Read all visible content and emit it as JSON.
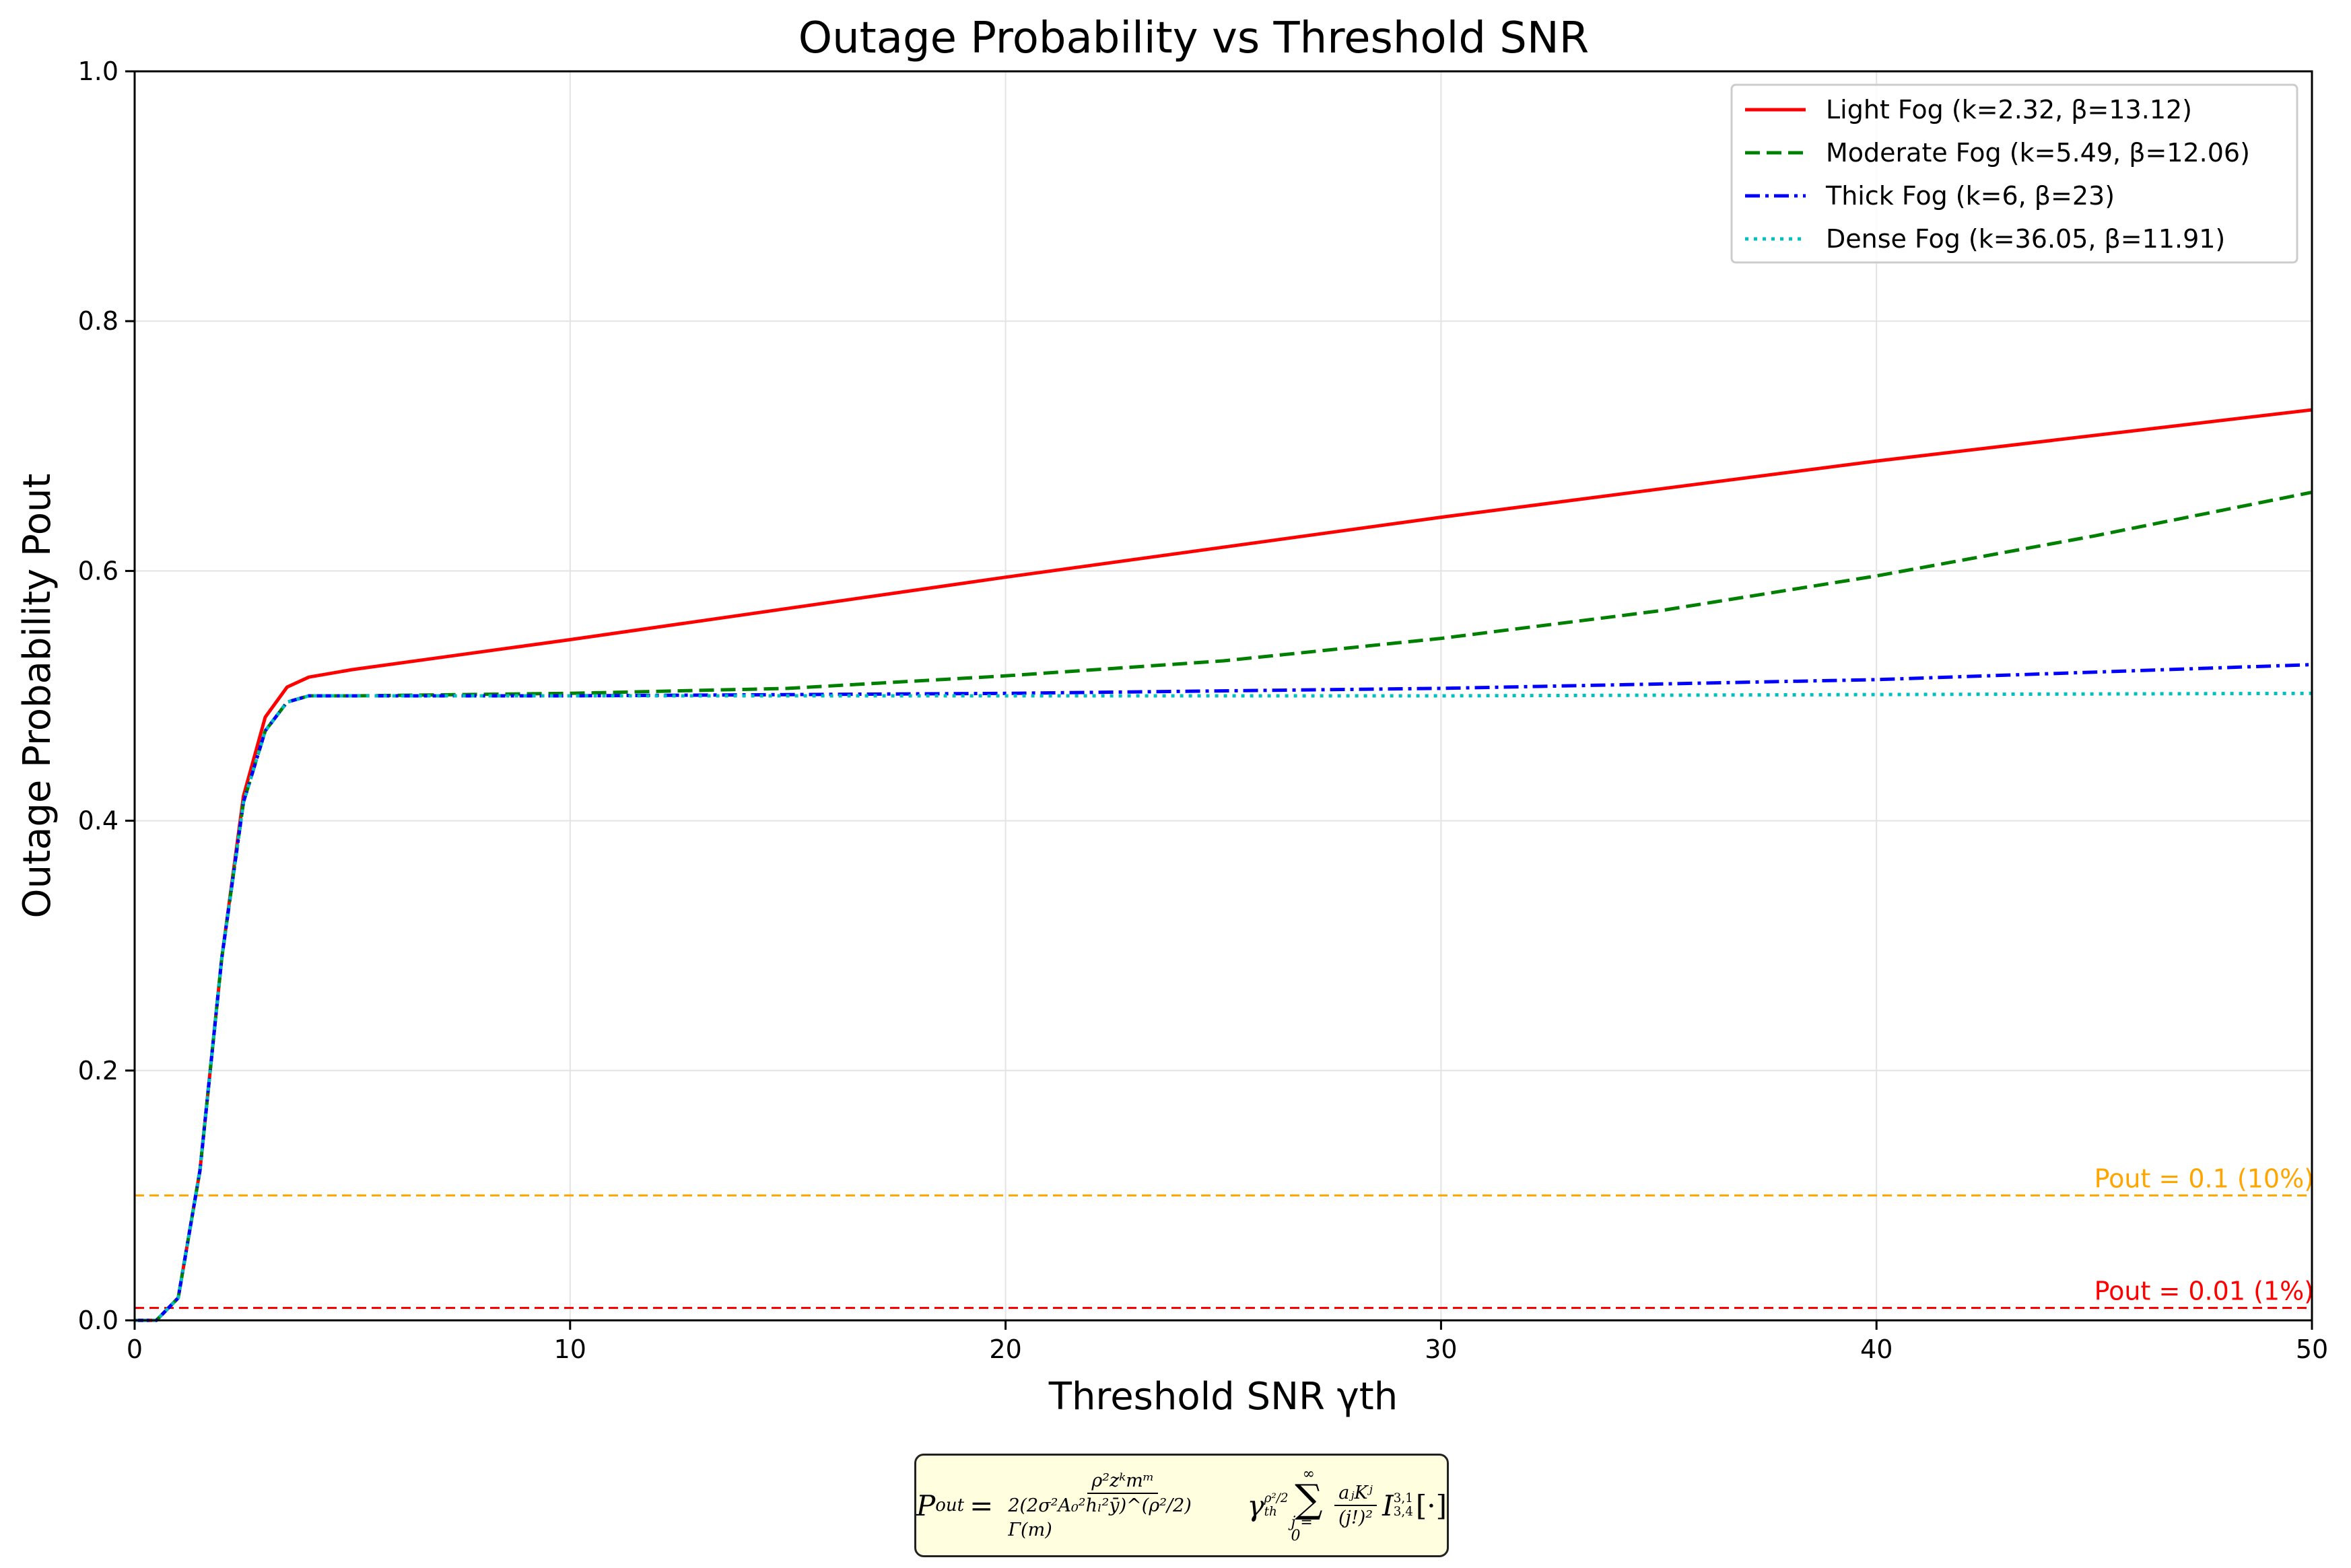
{
  "chart_data": {
    "type": "line",
    "title": "Outage Probability vs Threshold SNR",
    "xlabel": "Threshold SNR γth",
    "ylabel": "Outage Probability Pout",
    "xlim": [
      0,
      50
    ],
    "ylim": [
      0,
      1.0
    ],
    "xticks": [
      "0",
      "10",
      "20",
      "30",
      "40",
      "50"
    ],
    "yticks": [
      "0.0",
      "0.2",
      "0.4",
      "0.6",
      "0.8",
      "1.0"
    ],
    "grid": true,
    "legend_position": "top-right",
    "series": [
      {
        "name": "Light Fog (k=2.32, β=13.12)",
        "color": "#ff0000",
        "style": "solid",
        "x": [
          0,
          0.5,
          1,
          1.5,
          2,
          2.5,
          3,
          3.5,
          4,
          5,
          10,
          20,
          30,
          40,
          50
        ],
        "y": [
          0,
          0,
          0.018,
          0.12,
          0.29,
          0.42,
          0.483,
          0.507,
          0.515,
          0.521,
          0.545,
          0.595,
          0.643,
          0.688,
          0.729
        ]
      },
      {
        "name": "Moderate Fog (k=5.49, β=12.06)",
        "color": "#008000",
        "style": "dashed",
        "x": [
          0,
          0.5,
          1,
          1.5,
          2,
          2.5,
          3,
          3.5,
          4,
          5,
          10,
          15,
          20,
          25,
          30,
          35,
          40,
          45,
          50
        ],
        "y": [
          0,
          0,
          0.018,
          0.12,
          0.29,
          0.415,
          0.472,
          0.495,
          0.5,
          0.5,
          0.502,
          0.506,
          0.516,
          0.528,
          0.546,
          0.568,
          0.596,
          0.628,
          0.663
        ]
      },
      {
        "name": "Thick Fog (k=6, β=23)",
        "color": "#0000ff",
        "style": "dashdot",
        "x": [
          0,
          0.5,
          1,
          1.5,
          2,
          2.5,
          3,
          3.5,
          4,
          5,
          10,
          20,
          30,
          40,
          50
        ],
        "y": [
          0,
          0,
          0.018,
          0.12,
          0.29,
          0.415,
          0.472,
          0.495,
          0.5,
          0.5,
          0.5,
          0.502,
          0.506,
          0.513,
          0.525
        ]
      },
      {
        "name": "Dense Fog (k=36.05, β=11.91)",
        "color": "#00bfbf",
        "style": "dotted",
        "x": [
          0,
          0.5,
          1,
          1.5,
          2,
          2.5,
          3,
          3.5,
          4,
          5,
          10,
          20,
          30,
          40,
          50
        ],
        "y": [
          0,
          0,
          0.018,
          0.12,
          0.29,
          0.415,
          0.472,
          0.495,
          0.5,
          0.5,
          0.5,
          0.5,
          0.5,
          0.501,
          0.502
        ]
      }
    ],
    "reference_lines": [
      {
        "y": 0.1,
        "label": "Pout = 0.1 (10%)",
        "color": "#ffa500"
      },
      {
        "y": 0.01,
        "label": "Pout = 0.01 (1%)",
        "color": "#ff0000"
      }
    ]
  },
  "formula": {
    "lhs": "P",
    "lhs_sub": "out",
    "equals": "=",
    "frac_num": "ρ²zᵏmᵐ",
    "frac_den": "2(2σ²A₀²hₗ²ȳ)^(ρ²/2) Γ(m)",
    "gamma": "γ",
    "gamma_sub": "th",
    "gamma_sup": "ρ²/2",
    "sum_top": "∞",
    "sum_symbol": "∑",
    "sum_bottom": "j = 0",
    "term_num": "aⱼKʲ",
    "term_den": "(j!)²",
    "meijer": "I",
    "meijer_sup": "3,1",
    "meijer_sub": "3,4",
    "meijer_arg": "[·]"
  }
}
